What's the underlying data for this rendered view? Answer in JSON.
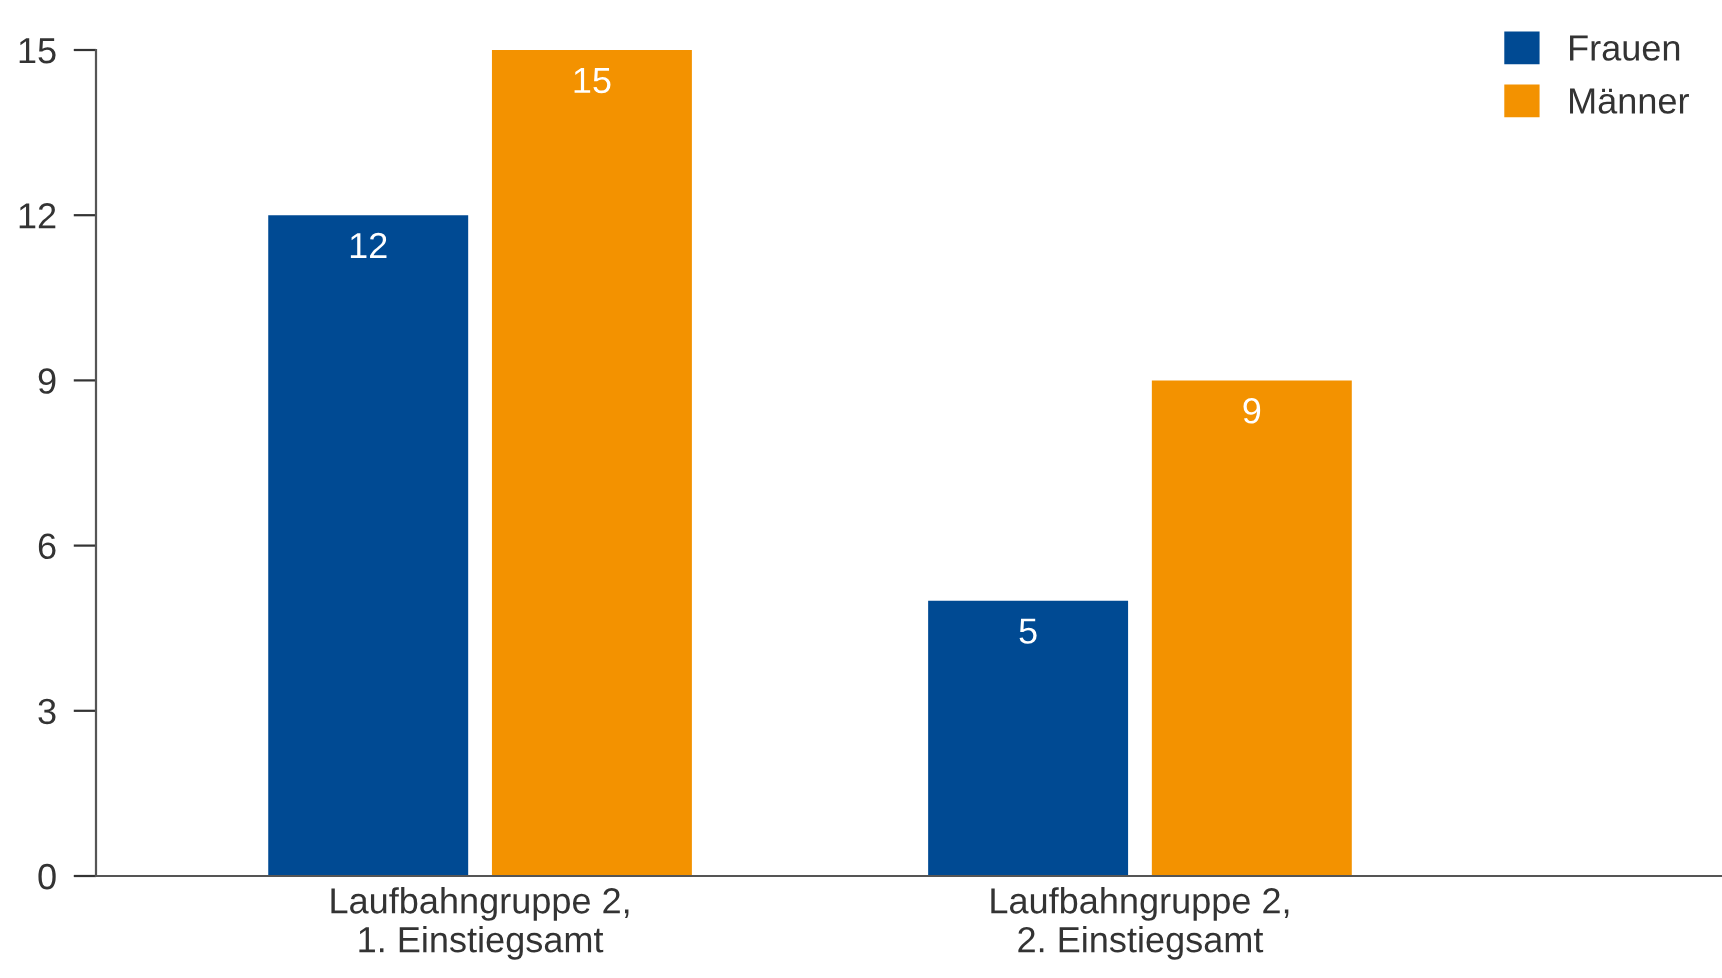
{
  "chart_data": {
    "type": "bar",
    "categories": [
      "Laufbahngruppe 2,\n1. Einstiegsamt",
      "Laufbahngruppe 2,\n2. Einstiegsamt"
    ],
    "series": [
      {
        "name": "Frauen",
        "color": "#004a93",
        "values": [
          12,
          5
        ]
      },
      {
        "name": "Männer",
        "color": "#f39200",
        "values": [
          15,
          9
        ]
      }
    ],
    "ylim": [
      0,
      15
    ],
    "yticks": [
      0,
      3,
      6,
      9,
      12,
      15
    ],
    "grid": false,
    "legend": "top right",
    "data_labels": true
  }
}
